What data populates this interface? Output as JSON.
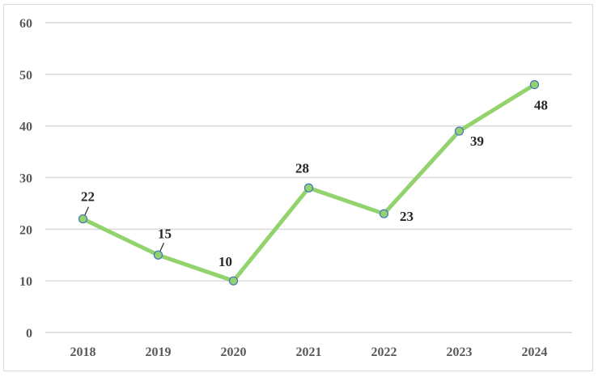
{
  "chart_data": {
    "type": "line",
    "title": "",
    "xlabel": "",
    "ylabel": "",
    "categories": [
      "2018",
      "2019",
      "2020",
      "2021",
      "2022",
      "2023",
      "2024"
    ],
    "series": [
      {
        "values": [
          22,
          15,
          10,
          28,
          23,
          39,
          48
        ],
        "line_color": "#92d36e",
        "marker_fill": "#92d36e",
        "marker_edge": "#4472c4"
      }
    ],
    "ylim": [
      0,
      60
    ],
    "yticks": [
      0,
      10,
      20,
      30,
      40,
      50,
      60
    ],
    "grid": true,
    "legend": "none"
  }
}
